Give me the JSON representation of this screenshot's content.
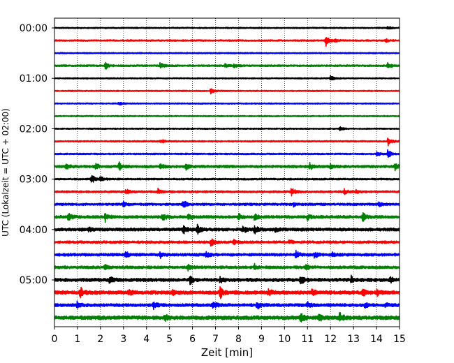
{
  "chart_data": {
    "type": "line",
    "title": "",
    "xlabel": "Zeit  [min]",
    "ylabel": "UTC (Lokalzeit = UTC + 02:00)",
    "xlim": [
      0,
      15
    ],
    "xticks": [
      0,
      1,
      2,
      3,
      4,
      5,
      6,
      7,
      8,
      9,
      10,
      11,
      12,
      13,
      14,
      15
    ],
    "yticks": [
      "00:00",
      "01:00",
      "02:00",
      "03:00",
      "04:00",
      "05:00"
    ],
    "grid": "vertical-dotted",
    "trace_interval_min": 15,
    "color_cycle": [
      "#000000",
      "#ff0000",
      "#0000ff",
      "#008000"
    ],
    "series": [
      {
        "start": "00:00",
        "amplitude": 0.1,
        "events": [
          [
            14.5,
            0.25
          ]
        ]
      },
      {
        "start": "00:15",
        "amplitude": 0.12,
        "events": [
          [
            11.8,
            0.9
          ],
          [
            12.2,
            0.3
          ],
          [
            14.4,
            0.3
          ]
        ]
      },
      {
        "start": "00:30",
        "amplitude": 0.1,
        "events": []
      },
      {
        "start": "00:45",
        "amplitude": 0.14,
        "events": [
          [
            2.2,
            0.6
          ],
          [
            4.6,
            0.5
          ],
          [
            7.4,
            0.4
          ],
          [
            7.8,
            0.3
          ],
          [
            14.5,
            0.6
          ]
        ]
      },
      {
        "start": "01:00",
        "amplitude": 0.1,
        "events": [
          [
            12.0,
            0.5
          ]
        ]
      },
      {
        "start": "01:15",
        "amplitude": 0.1,
        "events": [
          [
            6.8,
            0.5
          ]
        ]
      },
      {
        "start": "01:30",
        "amplitude": 0.1,
        "events": [
          [
            2.8,
            0.3
          ]
        ]
      },
      {
        "start": "01:45",
        "amplitude": 0.1,
        "events": []
      },
      {
        "start": "02:00",
        "amplitude": 0.1,
        "events": [
          [
            12.4,
            0.3
          ]
        ]
      },
      {
        "start": "02:15",
        "amplitude": 0.12,
        "events": [
          [
            4.6,
            0.4
          ],
          [
            14.5,
            0.7
          ]
        ]
      },
      {
        "start": "02:30",
        "amplitude": 0.12,
        "events": [
          [
            14.0,
            0.4
          ],
          [
            14.5,
            0.7
          ]
        ]
      },
      {
        "start": "02:45",
        "amplitude": 0.2,
        "events": [
          [
            0.5,
            0.4
          ],
          [
            1.8,
            0.4
          ],
          [
            2.8,
            0.7
          ],
          [
            4.6,
            0.3
          ],
          [
            5.7,
            0.5
          ],
          [
            11.1,
            0.5
          ],
          [
            12.0,
            0.4
          ],
          [
            14.8,
            0.5
          ]
        ]
      },
      {
        "start": "03:00",
        "amplitude": 0.14,
        "events": [
          [
            1.6,
            0.8
          ],
          [
            2.0,
            0.4
          ]
        ]
      },
      {
        "start": "03:15",
        "amplitude": 0.16,
        "events": [
          [
            3.1,
            0.4
          ],
          [
            4.5,
            0.4
          ],
          [
            10.3,
            0.6
          ],
          [
            12.6,
            0.4
          ],
          [
            13.1,
            0.3
          ]
        ]
      },
      {
        "start": "03:30",
        "amplitude": 0.18,
        "events": [
          [
            3.0,
            0.4
          ],
          [
            5.6,
            0.7
          ],
          [
            10.4,
            0.3
          ],
          [
            14.1,
            0.5
          ]
        ]
      },
      {
        "start": "03:45",
        "amplitude": 0.22,
        "events": [
          [
            0.6,
            0.6
          ],
          [
            2.2,
            0.7
          ],
          [
            4.7,
            0.6
          ],
          [
            5.8,
            0.5
          ],
          [
            8.0,
            0.5
          ],
          [
            8.7,
            0.5
          ],
          [
            11.0,
            0.4
          ],
          [
            13.4,
            0.7
          ]
        ]
      },
      {
        "start": "04:00",
        "amplitude": 0.24,
        "events": [
          [
            1.5,
            0.3
          ],
          [
            5.6,
            0.6
          ],
          [
            6.2,
            0.8
          ],
          [
            8.2,
            0.5
          ],
          [
            8.7,
            0.6
          ],
          [
            9.6,
            0.3
          ]
        ]
      },
      {
        "start": "04:15",
        "amplitude": 0.2,
        "events": [
          [
            6.8,
            0.6
          ],
          [
            7.8,
            0.3
          ],
          [
            10.2,
            0.3
          ]
        ]
      },
      {
        "start": "04:30",
        "amplitude": 0.22,
        "events": [
          [
            3.1,
            0.5
          ],
          [
            4.6,
            0.4
          ],
          [
            6.6,
            0.4
          ],
          [
            10.5,
            0.5
          ],
          [
            11.3,
            0.5
          ],
          [
            12.1,
            0.3
          ]
        ]
      },
      {
        "start": "04:45",
        "amplitude": 0.22,
        "events": [
          [
            2.2,
            0.4
          ],
          [
            5.8,
            0.5
          ],
          [
            8.7,
            0.4
          ],
          [
            10.9,
            0.4
          ]
        ]
      },
      {
        "start": "05:00",
        "amplitude": 0.26,
        "events": [
          [
            2.4,
            0.6
          ],
          [
            5.9,
            0.6
          ],
          [
            7.2,
            0.4
          ],
          [
            10.7,
            0.6
          ],
          [
            12.9,
            0.5
          ],
          [
            14.6,
            0.4
          ]
        ]
      },
      {
        "start": "05:15",
        "amplitude": 0.28,
        "events": [
          [
            1.1,
            0.9
          ],
          [
            3.2,
            0.6
          ],
          [
            5.1,
            0.4
          ],
          [
            7.2,
            0.9
          ],
          [
            9.3,
            0.6
          ],
          [
            11.2,
            0.5
          ],
          [
            13.4,
            0.5
          ],
          [
            14.0,
            0.5
          ]
        ]
      },
      {
        "start": "05:30",
        "amplitude": 0.24,
        "events": [
          [
            1.0,
            0.6
          ],
          [
            4.3,
            0.5
          ],
          [
            6.9,
            0.7
          ],
          [
            8.8,
            0.6
          ],
          [
            11.0,
            0.4
          ],
          [
            13.5,
            0.4
          ],
          [
            14.4,
            0.3
          ]
        ]
      },
      {
        "start": "05:45",
        "amplitude": 0.3,
        "events": [
          [
            4.8,
            0.6
          ],
          [
            10.7,
            0.8
          ],
          [
            11.5,
            0.5
          ],
          [
            12.4,
            0.7
          ]
        ]
      }
    ]
  }
}
